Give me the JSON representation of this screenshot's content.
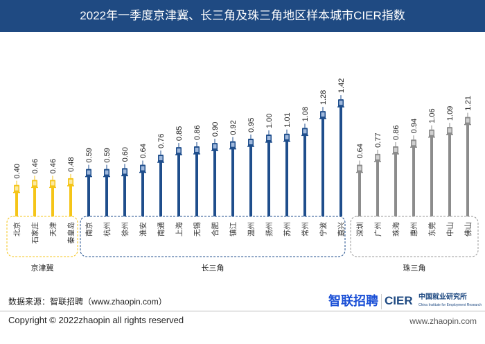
{
  "chart_data": {
    "type": "bar",
    "title": "2022年一季度京津冀、长三角及珠三角地区样本城市CIER指数",
    "ylim": [
      0,
      1.5
    ],
    "groups": [
      {
        "name": "京津冀",
        "color": "#f5c518",
        "cities": [
          "北京",
          "石家庄",
          "天津",
          "秦皇岛"
        ],
        "values": [
          0.4,
          0.46,
          0.46,
          0.48
        ]
      },
      {
        "name": "长三角",
        "color": "#1f4e8c",
        "cities": [
          "南京",
          "杭州",
          "徐州",
          "淮安",
          "南通",
          "上海",
          "无锡",
          "合肥",
          "镇江",
          "温州",
          "扬州",
          "苏州",
          "常州",
          "宁波",
          "嘉兴"
        ],
        "values": [
          0.59,
          0.59,
          0.6,
          0.64,
          0.76,
          0.85,
          0.86,
          0.9,
          0.92,
          0.95,
          1.0,
          1.01,
          1.08,
          1.28,
          1.42
        ]
      },
      {
        "name": "珠三角",
        "color": "#8c8c8c",
        "cities": [
          "深圳",
          "广州",
          "珠海",
          "惠州",
          "东莞",
          "中山",
          "佛山"
        ],
        "values": [
          0.64,
          0.77,
          0.86,
          0.94,
          1.06,
          1.09,
          1.21
        ]
      }
    ]
  },
  "footer": {
    "source": "数据来源：智联招聘（www.zhaopin.com）",
    "logo_zhaopin": "智联招聘",
    "logo_cier": "CIER",
    "logo_cier_cn": "中国就业研究所",
    "logo_cier_en": "China Institute for Employment Research",
    "copyright": "Copyright ©  2022zhaopin all rights reserved",
    "website": "www.zhaopin.com"
  }
}
